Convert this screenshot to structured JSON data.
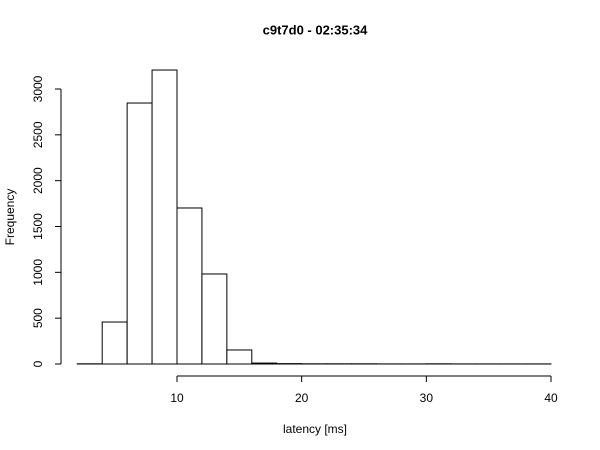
{
  "chart_data": {
    "type": "histogram",
    "title": "c9t7d0 - 02:35:34",
    "x_label": "latency [ms]",
    "y_label": "Frequency",
    "bins": [
      2,
      4,
      6,
      8,
      10,
      12,
      14,
      16,
      18,
      20,
      22,
      24,
      26,
      28,
      30,
      32,
      34,
      36,
      38,
      40
    ],
    "values": [
      2,
      458,
      2847,
      3207,
      1702,
      982,
      153,
      10,
      4,
      2,
      2,
      2,
      1,
      1,
      2,
      1,
      1,
      1,
      1
    ],
    "color": "#ffffff",
    "edge_color": "#000000",
    "xlim": [
      10,
      40
    ],
    "xticks": [
      10,
      20,
      30,
      40
    ],
    "ylim": [
      0,
      3000
    ],
    "yticks": [
      0,
      500,
      1000,
      1500,
      2000,
      2500,
      3000
    ]
  }
}
